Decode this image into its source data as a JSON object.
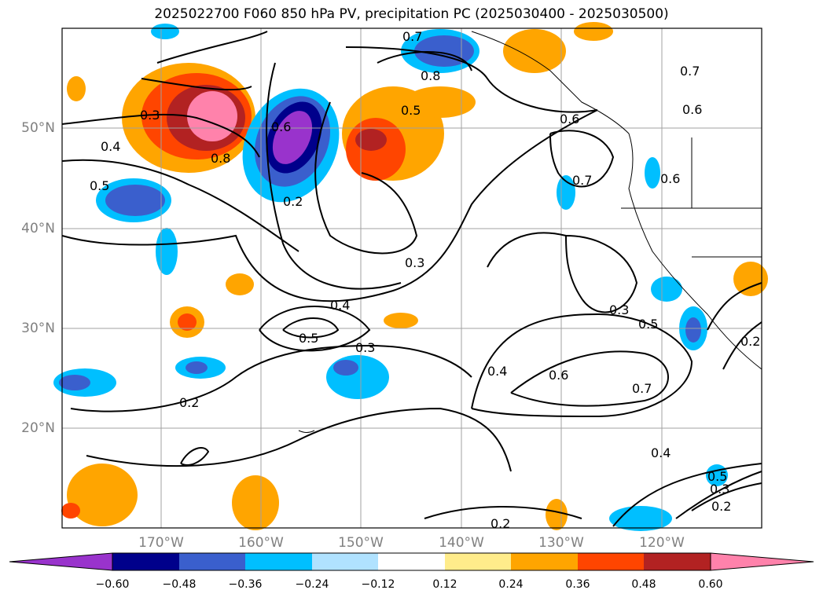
{
  "title": "2025022700 F060 850 hPa PV, precipitation PC (2025030400 - 2025030500)",
  "latitude_labels": [
    "50°N",
    "40°N",
    "30°N",
    "20°N"
  ],
  "longitude_labels": [
    "170°W",
    "160°W",
    "150°W",
    "140°W",
    "130°W",
    "120°W"
  ],
  "contour_labels": [
    "0.7",
    "0.8",
    "0.5",
    "0.6",
    "0.4",
    "0.3",
    "0.2",
    "0.5",
    "0.6",
    "0.8",
    "0.7",
    "0.7",
    "0.6",
    "0.6",
    "0.3",
    "0.5",
    "0.4",
    "0.3",
    "0.5",
    "0.3",
    "0.4",
    "0.6",
    "0.7",
    "0.4",
    "0.2",
    "0.2",
    "0.3",
    "0.2",
    "0.5",
    "0.2"
  ],
  "colorbar": {
    "ticks": [
      "−0.60",
      "−0.48",
      "−0.36",
      "−0.24",
      "−0.12",
      "0.12",
      "0.24",
      "0.36",
      "0.48",
      "0.60"
    ],
    "colors": [
      "#9933cc",
      "#00008b",
      "#3a5fcd",
      "#00bfff",
      "#b0e2ff",
      "#ffffff",
      "#ffec8b",
      "#ffa500",
      "#ff4500",
      "#b22222",
      "#ff82ab"
    ]
  }
}
